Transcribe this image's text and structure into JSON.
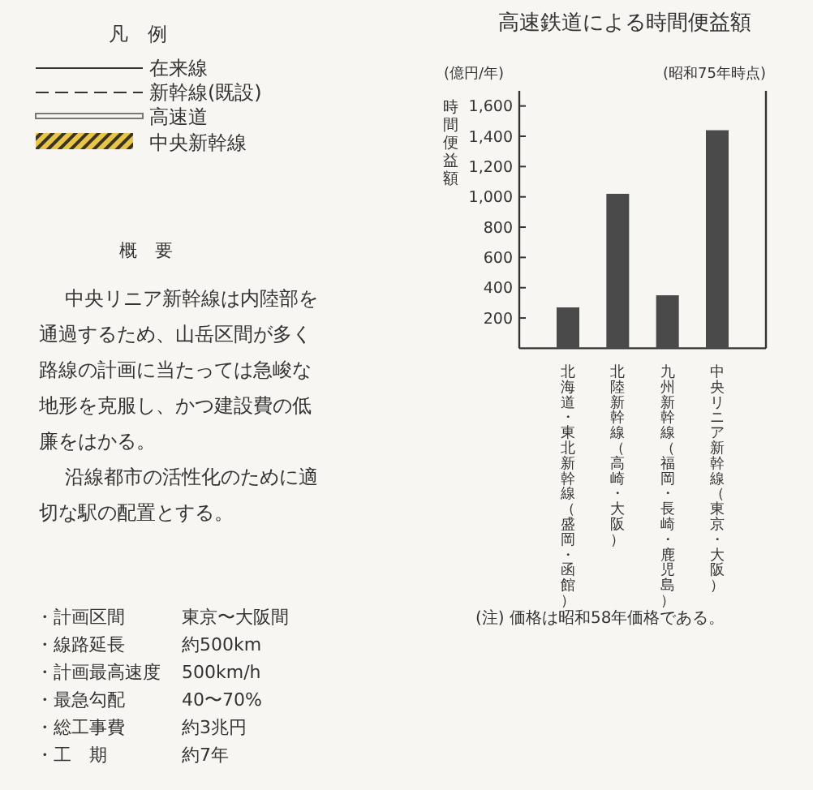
{
  "chart_data": {
    "type": "bar",
    "title": "高速鉄道による時間便益額",
    "ylabel": "時間便益額",
    "categories": [
      "北海道・東北新幹線（盛岡・函館）",
      "北陸新幹線（高崎・大阪）",
      "九州新幹線（福岡・長崎・鹿児島）",
      "中央リニア新幹線（東京・大阪）"
    ],
    "values": [
      270,
      1020,
      350,
      1440
    ],
    "color": "#4a4a4a",
    "ylim": [
      0,
      1700
    ],
    "yticks": [
      {
        "value": 200,
        "label": "200"
      },
      {
        "value": 400,
        "label": "400"
      },
      {
        "value": 600,
        "label": "600"
      },
      {
        "value": 800,
        "label": "800"
      },
      {
        "value": 1000,
        "label": "1,000"
      },
      {
        "value": 1200,
        "label": "1,200"
      },
      {
        "value": 1400,
        "label": "1,400"
      },
      {
        "value": 1600,
        "label": "1,600"
      }
    ],
    "grid": false,
    "annotations": [
      "(億円/年)",
      "(昭和75年時点)",
      "(注) 価格は昭和58年価格である。",
      "凡　例",
      "在来線",
      "新幹線(既設)",
      "高速道",
      "中央新幹線",
      "概　要",
      "中央リニア新幹線は内陸部を",
      "通過するため、山岳区間が多く",
      "路線の計画に当たっては急峻な",
      "地形を克服し、かつ建設費の低",
      "廉をはかる。",
      "沿線都市の活性化のために適",
      "切な駅の配置とする。",
      "・計画区間",
      "東京〜大阪間",
      "・線路延長",
      "約500km",
      "・計画最高速度",
      "500km/h",
      "・最急勾配",
      "40〜70%",
      "・総工事費",
      "約3兆円",
      "・工　期",
      "約7年"
    ]
  }
}
